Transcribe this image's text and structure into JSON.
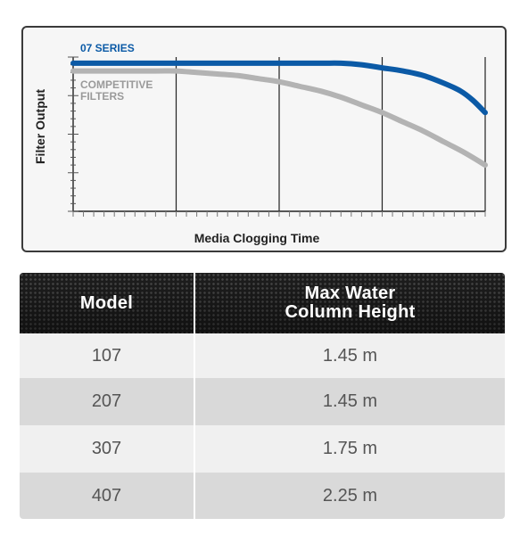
{
  "chart_data": {
    "type": "line",
    "xlabel": "Media Clogging Time",
    "ylabel": "Filter Output",
    "xlim": [
      0,
      100
    ],
    "ylim": [
      0,
      100
    ],
    "grid": true,
    "series": [
      {
        "name": "07 SERIES",
        "color": "#0b5aa6",
        "x": [
          0,
          10,
          20,
          30,
          40,
          50,
          60,
          65,
          70,
          75,
          80,
          85,
          90,
          94,
          97,
          100
        ],
        "y": [
          96,
          96,
          96,
          96,
          96,
          96,
          96,
          96,
          95,
          93,
          91,
          88,
          83,
          78,
          72,
          64
        ]
      },
      {
        "name": "COMPETITIVE FILTERS",
        "color": "#b3b3b3",
        "x": [
          0,
          10,
          20,
          25,
          30,
          35,
          40,
          45,
          50,
          55,
          60,
          65,
          70,
          75,
          80,
          85,
          90,
          95,
          100
        ],
        "y": [
          91,
          91,
          91,
          91,
          90,
          89,
          88,
          86,
          84,
          81,
          78,
          74,
          69,
          64,
          58,
          52,
          45,
          38,
          30
        ]
      }
    ]
  },
  "table": {
    "header": {
      "model": "Model",
      "height_line1": "Max Water",
      "height_line2": "Column Height"
    },
    "rows": [
      {
        "model": "107",
        "height": "1.45 m"
      },
      {
        "model": "207",
        "height": "1.45 m"
      },
      {
        "model": "307",
        "height": "1.75 m"
      },
      {
        "model": "407",
        "height": "2.25 m"
      }
    ],
    "row_colors": [
      "#f0f0f0",
      "#d9d9d9",
      "#f0f0f0",
      "#d9d9d9"
    ]
  }
}
